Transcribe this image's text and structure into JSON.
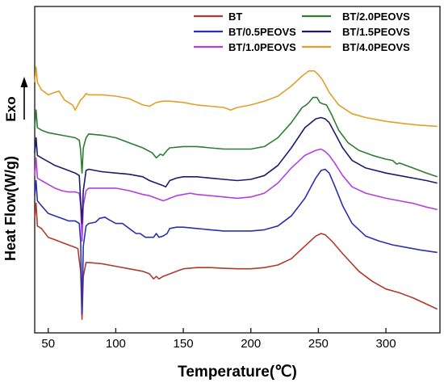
{
  "chart_data": {
    "type": "line",
    "xlabel": "Temperature(℃)",
    "ylabel": "Heat Flow(W/g)",
    "y_arrow_label": "Exo",
    "xlim": [
      40,
      340
    ],
    "ylim": [
      0,
      100
    ],
    "x_ticks": [
      50,
      100,
      150,
      200,
      250,
      300
    ],
    "legend_position": "top-right",
    "grid": false,
    "series": [
      {
        "name": "BT",
        "color": "#b03a2e",
        "points": [
          [
            40,
            39
          ],
          [
            41,
            45
          ],
          [
            42,
            36
          ],
          [
            45,
            35
          ],
          [
            50,
            31.5
          ],
          [
            55,
            30.5
          ],
          [
            60,
            29.5
          ],
          [
            65,
            28.5
          ],
          [
            70,
            27.5
          ],
          [
            72,
            27
          ],
          [
            74,
            18
          ],
          [
            75,
            -1
          ],
          [
            76,
            16
          ],
          [
            78,
            21.5
          ],
          [
            80,
            21.5
          ],
          [
            90,
            21
          ],
          [
            100,
            20
          ],
          [
            110,
            19
          ],
          [
            120,
            18
          ],
          [
            125,
            17
          ],
          [
            128,
            15
          ],
          [
            130,
            16
          ],
          [
            132,
            15
          ],
          [
            135,
            16
          ],
          [
            140,
            17
          ],
          [
            145,
            18
          ],
          [
            150,
            19
          ],
          [
            160,
            19.5
          ],
          [
            170,
            19.5
          ],
          [
            180,
            19.2
          ],
          [
            190,
            19
          ],
          [
            200,
            19
          ],
          [
            210,
            19.5
          ],
          [
            220,
            20.5
          ],
          [
            230,
            23
          ],
          [
            240,
            28
          ],
          [
            248,
            32
          ],
          [
            252,
            33
          ],
          [
            255,
            32.5
          ],
          [
            260,
            30
          ],
          [
            268,
            25
          ],
          [
            280,
            18
          ],
          [
            290,
            14
          ],
          [
            300,
            11
          ],
          [
            310,
            9.5
          ],
          [
            320,
            7.5
          ],
          [
            330,
            5
          ],
          [
            338,
            3
          ]
        ]
      },
      {
        "name": "BT/0.5PEOVS",
        "color": "#2b2fb0",
        "points": [
          [
            40,
            48
          ],
          [
            41,
            54
          ],
          [
            42,
            46
          ],
          [
            45,
            44
          ],
          [
            50,
            41
          ],
          [
            55,
            40
          ],
          [
            60,
            39
          ],
          [
            65,
            38
          ],
          [
            70,
            38
          ],
          [
            73,
            37
          ],
          [
            74,
            30
          ],
          [
            75,
            1
          ],
          [
            76,
            28
          ],
          [
            78,
            36
          ],
          [
            80,
            37
          ],
          [
            85,
            37.5
          ],
          [
            88,
            39
          ],
          [
            92,
            39.5
          ],
          [
            95,
            38.5
          ],
          [
            100,
            37
          ],
          [
            105,
            37
          ],
          [
            110,
            35
          ],
          [
            115,
            33
          ],
          [
            118,
            33
          ],
          [
            122,
            31.5
          ],
          [
            128,
            31.5
          ],
          [
            130,
            33
          ],
          [
            132,
            31.5
          ],
          [
            135,
            32
          ],
          [
            138,
            33
          ],
          [
            140,
            35
          ],
          [
            145,
            35.5
          ],
          [
            150,
            35.5
          ],
          [
            160,
            35
          ],
          [
            170,
            34.5
          ],
          [
            180,
            34
          ],
          [
            190,
            34
          ],
          [
            200,
            34
          ],
          [
            210,
            34.5
          ],
          [
            220,
            36
          ],
          [
            230,
            40
          ],
          [
            240,
            47
          ],
          [
            248,
            55
          ],
          [
            252,
            58
          ],
          [
            255,
            58.5
          ],
          [
            258,
            57
          ],
          [
            262,
            52
          ],
          [
            268,
            44
          ],
          [
            275,
            37
          ],
          [
            285,
            32
          ],
          [
            295,
            30
          ],
          [
            305,
            28.5
          ],
          [
            315,
            27.5
          ],
          [
            325,
            26.5
          ],
          [
            338,
            25.5
          ]
        ]
      },
      {
        "name": "BT/1.0PEOVS",
        "color": "#b43fe0",
        "points": [
          [
            40,
            56
          ],
          [
            41,
            63
          ],
          [
            42,
            55
          ],
          [
            45,
            54
          ],
          [
            50,
            52.5
          ],
          [
            55,
            51
          ],
          [
            60,
            50
          ],
          [
            65,
            49.5
          ],
          [
            70,
            49.5
          ],
          [
            73,
            49
          ],
          [
            74,
            44
          ],
          [
            75,
            30
          ],
          [
            76,
            44
          ],
          [
            78,
            50
          ],
          [
            80,
            51
          ],
          [
            90,
            51
          ],
          [
            100,
            51
          ],
          [
            110,
            50
          ],
          [
            120,
            48.5
          ],
          [
            125,
            48
          ],
          [
            130,
            47
          ],
          [
            135,
            46
          ],
          [
            138,
            46.5
          ],
          [
            140,
            47
          ],
          [
            145,
            48
          ],
          [
            150,
            48.5
          ],
          [
            155,
            49
          ],
          [
            160,
            48.5
          ],
          [
            170,
            48
          ],
          [
            180,
            47.5
          ],
          [
            190,
            47
          ],
          [
            200,
            47.5
          ],
          [
            210,
            49
          ],
          [
            220,
            53
          ],
          [
            230,
            59
          ],
          [
            240,
            64
          ],
          [
            248,
            66
          ],
          [
            252,
            66.5
          ],
          [
            255,
            65.5
          ],
          [
            258,
            64
          ],
          [
            262,
            61
          ],
          [
            268,
            56
          ],
          [
            275,
            51.5
          ],
          [
            285,
            49
          ],
          [
            300,
            47
          ],
          [
            310,
            46
          ],
          [
            320,
            45
          ],
          [
            330,
            43.5
          ],
          [
            338,
            42.5
          ]
        ]
      },
      {
        "name": "BT/1.5PEOVS",
        "color": "#1c1c6e",
        "points": [
          [
            40,
            65
          ],
          [
            41,
            71
          ],
          [
            42,
            64
          ],
          [
            45,
            63
          ],
          [
            50,
            61.5
          ],
          [
            55,
            60
          ],
          [
            60,
            59
          ],
          [
            65,
            58
          ],
          [
            70,
            57
          ],
          [
            73,
            56
          ],
          [
            74,
            46
          ],
          [
            75,
            37
          ],
          [
            76,
            50
          ],
          [
            78,
            58
          ],
          [
            80,
            58.5
          ],
          [
            90,
            57.5
          ],
          [
            100,
            57
          ],
          [
            110,
            56.5
          ],
          [
            120,
            55.5
          ],
          [
            125,
            54
          ],
          [
            130,
            53
          ],
          [
            135,
            52
          ],
          [
            137,
            51.5
          ],
          [
            140,
            54
          ],
          [
            145,
            55
          ],
          [
            150,
            55.5
          ],
          [
            160,
            55.5
          ],
          [
            170,
            55
          ],
          [
            180,
            54.5
          ],
          [
            190,
            54
          ],
          [
            200,
            54.5
          ],
          [
            210,
            56
          ],
          [
            220,
            60
          ],
          [
            230,
            67
          ],
          [
            240,
            75
          ],
          [
            248,
            78.5
          ],
          [
            252,
            79
          ],
          [
            255,
            78.5
          ],
          [
            258,
            77
          ],
          [
            262,
            73
          ],
          [
            268,
            67
          ],
          [
            275,
            62
          ],
          [
            285,
            59
          ],
          [
            300,
            57
          ],
          [
            310,
            56
          ],
          [
            320,
            55
          ],
          [
            330,
            54
          ],
          [
            338,
            53
          ]
        ]
      },
      {
        "name": "BT/2.0PEOVS",
        "color": "#2e7d32",
        "points": [
          [
            40,
            75
          ],
          [
            41,
            82
          ],
          [
            42,
            75
          ],
          [
            45,
            74
          ],
          [
            50,
            73
          ],
          [
            55,
            72.5
          ],
          [
            60,
            72
          ],
          [
            65,
            71.5
          ],
          [
            70,
            71
          ],
          [
            73,
            70
          ],
          [
            74,
            66
          ],
          [
            75,
            57
          ],
          [
            76,
            67
          ],
          [
            78,
            71
          ],
          [
            80,
            72.5
          ],
          [
            90,
            72
          ],
          [
            100,
            71
          ],
          [
            110,
            69
          ],
          [
            120,
            67
          ],
          [
            127,
            65
          ],
          [
            130,
            63
          ],
          [
            133,
            64.5
          ],
          [
            135,
            64
          ],
          [
            138,
            66
          ],
          [
            140,
            67
          ],
          [
            150,
            67.5
          ],
          [
            160,
            67.5
          ],
          [
            170,
            67
          ],
          [
            180,
            66.5
          ],
          [
            190,
            66.5
          ],
          [
            200,
            66.5
          ],
          [
            210,
            67.5
          ],
          [
            220,
            71
          ],
          [
            230,
            77
          ],
          [
            238,
            83
          ],
          [
            241,
            84
          ],
          [
            243,
            85
          ],
          [
            246,
            87
          ],
          [
            249,
            87
          ],
          [
            251,
            85
          ],
          [
            253,
            84.5
          ],
          [
            256,
            84
          ],
          [
            260,
            80
          ],
          [
            265,
            74
          ],
          [
            272,
            69
          ],
          [
            280,
            66
          ],
          [
            290,
            64
          ],
          [
            300,
            62.5
          ],
          [
            305,
            62
          ],
          [
            308,
            60.5
          ],
          [
            310,
            61
          ],
          [
            320,
            59
          ],
          [
            330,
            57
          ],
          [
            338,
            55.5
          ]
        ]
      },
      {
        "name": "BT/4.0PEOVS",
        "color": "#e0a02a",
        "points": [
          [
            40,
            93
          ],
          [
            41,
            99
          ],
          [
            42,
            93
          ],
          [
            45,
            90
          ],
          [
            50,
            88
          ],
          [
            55,
            89
          ],
          [
            58,
            89.5
          ],
          [
            62,
            86
          ],
          [
            65,
            85
          ],
          [
            68,
            84
          ],
          [
            70,
            82
          ],
          [
            72,
            84
          ],
          [
            74,
            86
          ],
          [
            76,
            87
          ],
          [
            78,
            88.5
          ],
          [
            80,
            88
          ],
          [
            90,
            88
          ],
          [
            100,
            87.5
          ],
          [
            110,
            86.5
          ],
          [
            120,
            84
          ],
          [
            125,
            83.5
          ],
          [
            130,
            85
          ],
          [
            135,
            85.5
          ],
          [
            140,
            85.5
          ],
          [
            150,
            85
          ],
          [
            160,
            84
          ],
          [
            170,
            83.5
          ],
          [
            180,
            83
          ],
          [
            185,
            82
          ],
          [
            190,
            83
          ],
          [
            200,
            84
          ],
          [
            210,
            85.5
          ],
          [
            220,
            87.5
          ],
          [
            230,
            91.5
          ],
          [
            238,
            95.5
          ],
          [
            243,
            97.5
          ],
          [
            247,
            97.5
          ],
          [
            250,
            96
          ],
          [
            253,
            94
          ],
          [
            258,
            89
          ],
          [
            265,
            84
          ],
          [
            275,
            80.5
          ],
          [
            285,
            79
          ],
          [
            300,
            77.5
          ],
          [
            315,
            76.5
          ],
          [
            325,
            76
          ],
          [
            338,
            75.5
          ]
        ]
      }
    ]
  }
}
